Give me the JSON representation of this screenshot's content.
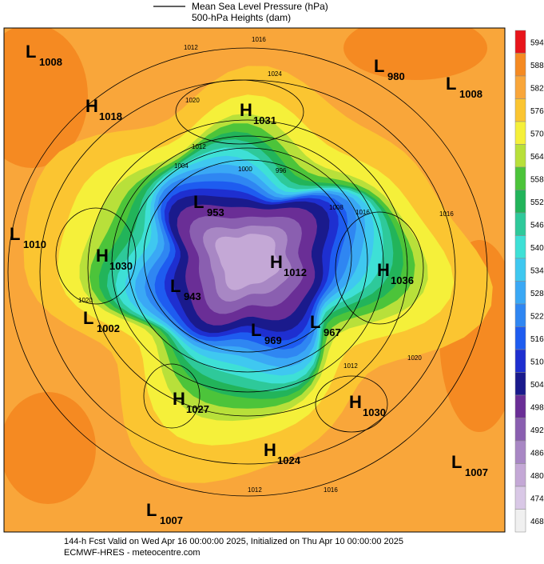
{
  "legend": {
    "mslp": "Mean Sea Level Pressure (hPa)",
    "heights": "500-hPa Heights (dam)"
  },
  "colorbar": {
    "levels": [
      594,
      588,
      582,
      576,
      570,
      564,
      558,
      552,
      546,
      540,
      534,
      528,
      522,
      516,
      510,
      504,
      498,
      492,
      486,
      480,
      474,
      468
    ],
    "colors": [
      "#e8151b",
      "#f58a22",
      "#f9a63a",
      "#fbc531",
      "#f5f03a",
      "#b8e03a",
      "#4cc43a",
      "#22b45a",
      "#2ec99a",
      "#3ee0d6",
      "#3fc8f0",
      "#3aa8f5",
      "#2f86f2",
      "#1e5cf0",
      "#1e2fd0",
      "#1a1a8c",
      "#6a2e96",
      "#8a5fb0",
      "#a887c4",
      "#c4a8d6",
      "#d9c8e6",
      "#f0f0f0"
    ]
  },
  "centers": [
    {
      "kind": "L",
      "value": "1008"
    },
    {
      "kind": "H",
      "value": "1018"
    },
    {
      "kind": "H",
      "value": "1031"
    },
    {
      "kind": "L",
      "value": "980"
    },
    {
      "kind": "L",
      "value": "1008"
    },
    {
      "kind": "L",
      "value": "953"
    },
    {
      "kind": "L",
      "value": "1010"
    },
    {
      "kind": "H",
      "value": "1030"
    },
    {
      "kind": "H",
      "value": "1012"
    },
    {
      "kind": "H",
      "value": "1036"
    },
    {
      "kind": "L",
      "value": "943"
    },
    {
      "kind": "L",
      "value": "1002"
    },
    {
      "kind": "L",
      "value": "969"
    },
    {
      "kind": "L",
      "value": "967"
    },
    {
      "kind": "H",
      "value": "1027"
    },
    {
      "kind": "H",
      "value": "1030"
    },
    {
      "kind": "H",
      "value": "1024"
    },
    {
      "kind": "L",
      "value": "1007"
    },
    {
      "kind": "L",
      "value": "1007"
    }
  ],
  "contour_labels": [
    "1016",
    "1012",
    "1024",
    "1020",
    "1012",
    "1004",
    "1000",
    "996",
    "1008",
    "1016",
    "1020",
    "1012",
    "1016",
    "1020",
    "1016",
    "1012"
  ],
  "footer": {
    "line1": "144-h Fcst Valid on Wed Apr 16 00:00:00 2025, Initialized on Thu Apr 10 00:00:00 2025",
    "line2": "ECMWF-HRES  - meteocentre.com"
  }
}
